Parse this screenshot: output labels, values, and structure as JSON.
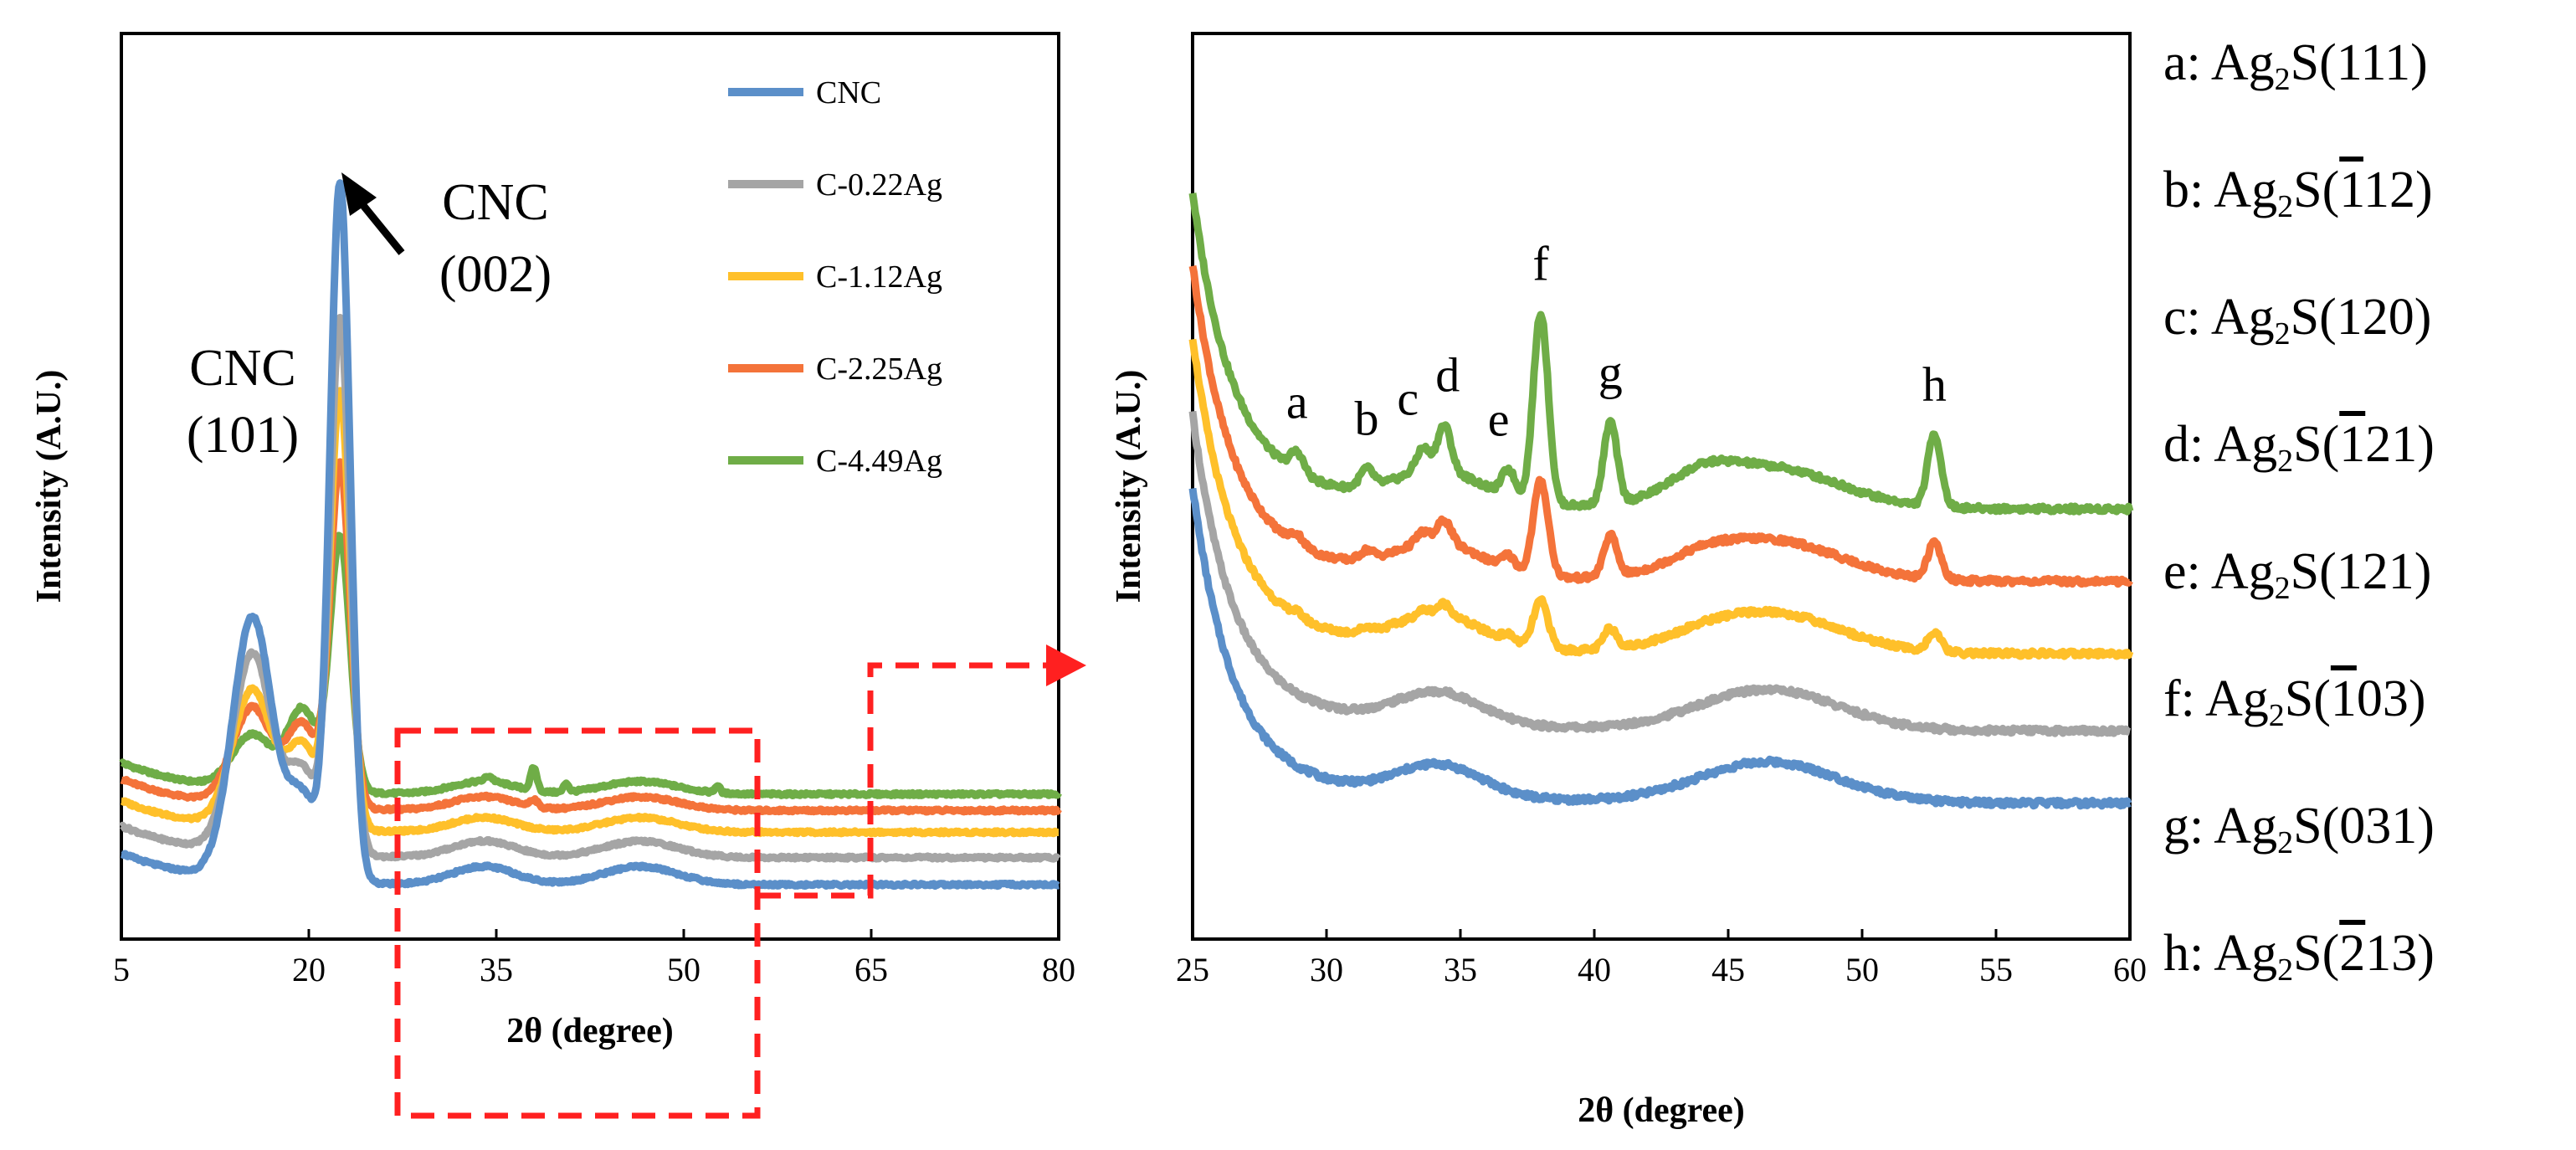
{
  "chart_data": [
    {
      "type": "line",
      "title": "",
      "xlabel": "2θ (degree)",
      "ylabel": "Intensity (A.U.)",
      "xlim": [
        5,
        80
      ],
      "ylim": [
        0,
        1
      ],
      "xticks": [
        "5",
        "20",
        "35",
        "50",
        "65",
        "80"
      ],
      "legend_position": "top-right",
      "series": [
        {
          "name": "CNC",
          "color": "#5b8fc9",
          "offset": 0.0,
          "p101": 0.34,
          "p002": 0.83,
          "hump": 0.02
        },
        {
          "name": "C-0.22Ag",
          "color": "#a5a5a5",
          "offset": 0.03,
          "p101": 0.3,
          "p002": 0.68,
          "hump": 0.018
        },
        {
          "name": "C-1.12Ag",
          "color": "#ffc02a",
          "offset": 0.058,
          "p101": 0.26,
          "p002": 0.6,
          "hump": 0.016
        },
        {
          "name": "C-2.25Ag",
          "color": "#f4733a",
          "offset": 0.082,
          "p101": 0.24,
          "p002": 0.52,
          "hump": 0.015
        },
        {
          "name": "C-4.49Ag",
          "color": "#6fad47",
          "offset": 0.1,
          "p101": 0.21,
          "p002": 0.44,
          "hump": 0.014
        }
      ],
      "annotations": [
        {
          "label": "CNC",
          "sub": "(101)",
          "x": 15.5
        },
        {
          "label": "CNC",
          "sub": "(002)",
          "x": 22.5
        }
      ],
      "zoom_region": [
        29,
        54
      ]
    },
    {
      "type": "line",
      "title": "",
      "xlabel": "2θ (degree)",
      "ylabel": "Intensity (A.U.)",
      "xlim": [
        25,
        60
      ],
      "ylim": [
        0,
        1
      ],
      "xticks": [
        "25",
        "30",
        "35",
        "40",
        "45",
        "50",
        "55",
        "60"
      ],
      "series": [
        {
          "name": "CNC",
          "color": "#5b8fc9",
          "offset": 0.0,
          "ag": 0.0
        },
        {
          "name": "C-0.22Ag",
          "color": "#a5a5a5",
          "offset": 0.08,
          "ag": 0.0
        },
        {
          "name": "C-1.12Ag",
          "color": "#ffc02a",
          "offset": 0.165,
          "ag": 0.25
        },
        {
          "name": "C-2.25Ag",
          "color": "#f4733a",
          "offset": 0.245,
          "ag": 0.5
        },
        {
          "name": "C-4.49Ag",
          "color": "#6fad47",
          "offset": 0.325,
          "ag": 1.0
        }
      ],
      "peaks": [
        {
          "letter": "a",
          "x": 28.9,
          "h": 0.022
        },
        {
          "letter": "b",
          "x": 31.5,
          "h": 0.02
        },
        {
          "letter": "c",
          "x": 33.6,
          "h": 0.025
        },
        {
          "letter": "d",
          "x": 34.4,
          "h": 0.05
        },
        {
          "letter": "e",
          "x": 36.8,
          "h": 0.03
        },
        {
          "letter": "f",
          "x": 38.0,
          "h": 0.21
        },
        {
          "letter": "g",
          "x": 40.6,
          "h": 0.09
        },
        {
          "letter": "h",
          "x": 52.7,
          "h": 0.08
        }
      ]
    }
  ],
  "planes": [
    {
      "letter": "a:",
      "formula": "Ag",
      "sub": "2",
      "s": "S(",
      "bar": "",
      "rest": "111)"
    },
    {
      "letter": "b:",
      "formula": "Ag",
      "sub": "2",
      "s": "S(",
      "bar": "1",
      "rest": "12)"
    },
    {
      "letter": "c:",
      "formula": "Ag",
      "sub": "2",
      "s": "S(",
      "bar": "",
      "rest": "120)"
    },
    {
      "letter": "d:",
      "formula": "Ag",
      "sub": "2",
      "s": "S(",
      "bar": "1",
      "rest": "21)"
    },
    {
      "letter": "e:",
      "formula": "Ag",
      "sub": "2",
      "s": "S(",
      "bar": "",
      "rest": "121)"
    },
    {
      "letter": "f:",
      "formula": "Ag",
      "sub": "2",
      "s": "S(",
      "bar": "1",
      "rest": "03)"
    },
    {
      "letter": "g:",
      "formula": "Ag",
      "sub": "2",
      "s": "S(",
      "bar": "",
      "rest": "031)"
    },
    {
      "letter": "h:",
      "formula": "Ag",
      "sub": "2",
      "s": "S(",
      "bar": "2",
      "rest": "13)"
    }
  ]
}
